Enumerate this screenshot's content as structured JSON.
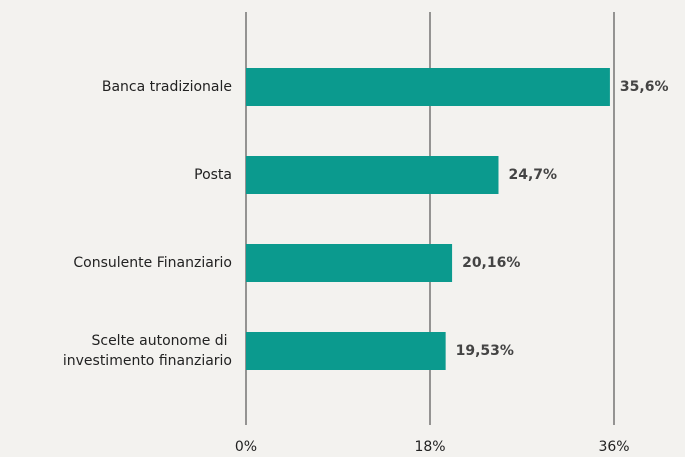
{
  "chart_data": {
    "type": "hbar",
    "categories": [
      "Banca tradizionale",
      "Posta",
      "Consulente Finanziario",
      "Scelte autonome di\ninvestimento finanziario"
    ],
    "values": [
      35.6,
      24.7,
      20.16,
      19.53
    ],
    "value_labels": [
      "35,6%",
      "24,7%",
      "20,16%",
      "19,53%"
    ],
    "color": "#0b9a8e",
    "xlim": [
      0,
      36
    ],
    "xticks": [
      {
        "value": 0,
        "label": "0%"
      },
      {
        "value": 18,
        "label": "18%"
      },
      {
        "value": 36,
        "label": "36%"
      }
    ],
    "grid": true
  }
}
